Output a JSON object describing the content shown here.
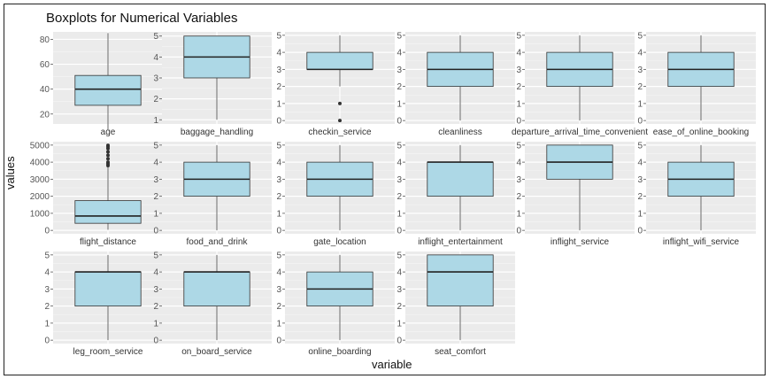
{
  "chart_data": {
    "type": "boxplot",
    "title": "Boxplots for Numerical Variables",
    "xlabel": "variable",
    "ylabel": "values",
    "grid": true,
    "box_color": "#ADD8E6",
    "panel_color": "#EBEBEB",
    "panels": [
      {
        "variable": "age",
        "ylim": [
          12,
          86
        ],
        "ticks": [
          20,
          40,
          60,
          80
        ],
        "min": 7,
        "q1": 27,
        "median": 40,
        "q3": 51,
        "max": 85,
        "outliers": []
      },
      {
        "variable": "baggage_handling",
        "ylim": [
          0.8,
          5.2
        ],
        "ticks": [
          1,
          2,
          3,
          4,
          5
        ],
        "min": 1,
        "q1": 3,
        "median": 4,
        "q3": 5,
        "max": 5,
        "outliers": []
      },
      {
        "variable": "checkin_service",
        "ylim": [
          -0.2,
          5.2
        ],
        "ticks": [
          0,
          1,
          2,
          3,
          4,
          5
        ],
        "min": 2,
        "q1": 3,
        "median": 3,
        "q3": 4,
        "max": 5,
        "outliers": [
          1,
          0
        ]
      },
      {
        "variable": "cleanliness",
        "ylim": [
          -0.2,
          5.2
        ],
        "ticks": [
          0,
          1,
          2,
          3,
          4,
          5
        ],
        "min": 0,
        "q1": 2,
        "median": 3,
        "q3": 4,
        "max": 5,
        "outliers": []
      },
      {
        "variable": "departure_arrival_time_convenient",
        "ylim": [
          -0.2,
          5.2
        ],
        "ticks": [
          0,
          1,
          2,
          3,
          4,
          5
        ],
        "min": 0,
        "q1": 2,
        "median": 3,
        "q3": 4,
        "max": 5,
        "outliers": []
      },
      {
        "variable": "ease_of_online_booking",
        "ylim": [
          -0.2,
          5.2
        ],
        "ticks": [
          0,
          1,
          2,
          3,
          4,
          5
        ],
        "min": 0,
        "q1": 2,
        "median": 3,
        "q3": 4,
        "max": 5,
        "outliers": []
      },
      {
        "variable": "flight_distance",
        "ylim": [
          -200,
          5200
        ],
        "ticks": [
          0,
          1000,
          2000,
          3000,
          4000,
          5000
        ],
        "min": 31,
        "q1": 414,
        "median": 844,
        "q3": 1744,
        "max": 3740,
        "outliers": [
          3800,
          3900,
          4000,
          4200,
          4400,
          4600,
          4800,
          4900,
          4983
        ]
      },
      {
        "variable": "food_and_drink",
        "ylim": [
          -0.2,
          5.2
        ],
        "ticks": [
          0,
          1,
          2,
          3,
          4,
          5
        ],
        "min": 0,
        "q1": 2,
        "median": 3,
        "q3": 4,
        "max": 5,
        "outliers": []
      },
      {
        "variable": "gate_location",
        "ylim": [
          -0.2,
          5.2
        ],
        "ticks": [
          0,
          1,
          2,
          3,
          4,
          5
        ],
        "min": 0,
        "q1": 2,
        "median": 3,
        "q3": 4,
        "max": 5,
        "outliers": []
      },
      {
        "variable": "inflight_entertainment",
        "ylim": [
          -0.2,
          5.2
        ],
        "ticks": [
          0,
          1,
          2,
          3,
          4,
          5
        ],
        "min": 0,
        "q1": 2,
        "median": 4,
        "q3": 4,
        "max": 5,
        "outliers": []
      },
      {
        "variable": "inflight_service",
        "ylim": [
          -0.2,
          5.2
        ],
        "ticks": [
          0,
          1,
          2,
          3,
          4,
          5
        ],
        "min": 0,
        "q1": 3,
        "median": 4,
        "q3": 5,
        "max": 5,
        "outliers": []
      },
      {
        "variable": "inflight_wifi_service",
        "ylim": [
          -0.2,
          5.2
        ],
        "ticks": [
          0,
          1,
          2,
          3,
          4,
          5
        ],
        "min": 0,
        "q1": 2,
        "median": 3,
        "q3": 4,
        "max": 5,
        "outliers": []
      },
      {
        "variable": "leg_room_service",
        "ylim": [
          -0.2,
          5.2
        ],
        "ticks": [
          0,
          1,
          2,
          3,
          4,
          5
        ],
        "min": 0,
        "q1": 2,
        "median": 4,
        "q3": 4,
        "max": 5,
        "outliers": []
      },
      {
        "variable": "on_board_service",
        "ylim": [
          -0.2,
          5.2
        ],
        "ticks": [
          0,
          1,
          2,
          3,
          4,
          5
        ],
        "min": 0,
        "q1": 2,
        "median": 4,
        "q3": 4,
        "max": 5,
        "outliers": []
      },
      {
        "variable": "online_boarding",
        "ylim": [
          -0.2,
          5.2
        ],
        "ticks": [
          0,
          1,
          2,
          3,
          4,
          5
        ],
        "min": 0,
        "q1": 2,
        "median": 3,
        "q3": 4,
        "max": 5,
        "outliers": []
      },
      {
        "variable": "seat_comfort",
        "ylim": [
          -0.2,
          5.2
        ],
        "ticks": [
          0,
          1,
          2,
          3,
          4,
          5
        ],
        "min": 0,
        "q1": 2,
        "median": 4,
        "q3": 5,
        "max": 5,
        "outliers": []
      }
    ]
  }
}
